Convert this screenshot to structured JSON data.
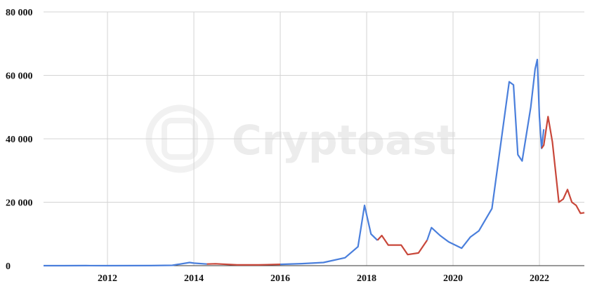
{
  "chart_data": {
    "type": "line",
    "watermark": "Cryptoast",
    "x": [
      2010.52,
      2011.0,
      2011.5,
      2012.0,
      2013.0,
      2013.5,
      2013.9,
      2014.0,
      2014.3,
      2014.5,
      2015.0,
      2015.5,
      2016.0,
      2016.5,
      2017.0,
      2017.5,
      2017.8,
      2017.95,
      2018.1,
      2018.25,
      2018.35,
      2018.5,
      2018.8,
      2018.95,
      2019.2,
      2019.4,
      2019.5,
      2019.7,
      2019.9,
      2020.2,
      2020.4,
      2020.6,
      2020.9,
      2021.1,
      2021.3,
      2021.4,
      2021.5,
      2021.6,
      2021.8,
      2021.9,
      2021.95,
      2022.0,
      2022.05,
      2022.1,
      2022.2,
      2022.3,
      2022.45,
      2022.55,
      2022.65,
      2022.75,
      2022.85,
      2022.95,
      2023.04
    ],
    "series": [
      {
        "color": "#4a7fdc",
        "values": [
          0,
          0,
          15,
          5,
          13,
          100,
          1000,
          800,
          500,
          null,
          null,
          null,
          430,
          650,
          1000,
          2500,
          6000,
          19000,
          10000,
          8000,
          null,
          null,
          null,
          null,
          null,
          8000,
          12000,
          9500,
          7500,
          5500,
          9000,
          11000,
          18000,
          38000,
          58000,
          57000,
          35000,
          33000,
          50000,
          62000,
          65000,
          47000,
          37000,
          43000,
          null,
          null,
          null,
          null,
          null,
          null,
          null,
          null,
          null
        ]
      },
      {
        "color": "#c8473a",
        "values": [
          null,
          null,
          null,
          null,
          null,
          null,
          null,
          null,
          500,
          600,
          250,
          250,
          430,
          null,
          null,
          null,
          null,
          null,
          null,
          8000,
          9500,
          6500,
          6500,
          3500,
          4000,
          8000,
          null,
          null,
          null,
          null,
          null,
          null,
          null,
          null,
          null,
          null,
          null,
          null,
          null,
          null,
          null,
          null,
          37000,
          38000,
          47000,
          39000,
          20000,
          21000,
          24000,
          20000,
          19000,
          16500,
          16700
        ]
      }
    ],
    "xlim": [
      2010.52,
      2023.04
    ],
    "xticks": [
      2012,
      2014,
      2016,
      2018,
      2020,
      2022
    ],
    "ylim": [
      0,
      80000
    ],
    "yticks": [
      0,
      {
        "value": 20000,
        "label": "20 000"
      },
      {
        "value": 40000,
        "label": "40 000"
      },
      {
        "value": 60000,
        "label": "60 000"
      },
      {
        "value": 80000,
        "label": "80 000"
      }
    ],
    "grid": true
  }
}
